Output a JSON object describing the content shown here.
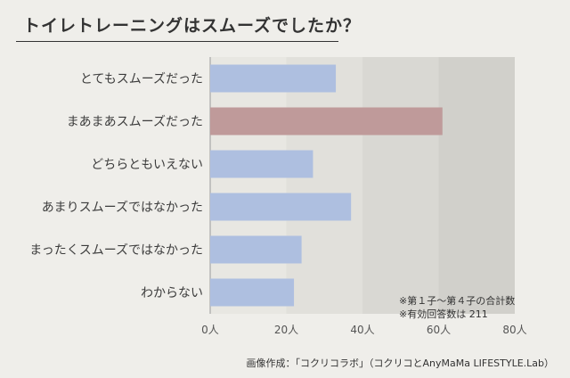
{
  "title": "トイレトレーニングはスムーズでしたか？",
  "notes": [
    "※第１子〜第４子の合計数",
    "※有効回答数は 211"
  ],
  "source": "画像作成：「コクリコラボ」（コクリコとAnyMaMa LIFESTYLE.Lab）",
  "colors": {
    "bar": "#aebfe0",
    "highlight": "#bf9a9a",
    "band1": "#e8e7e2",
    "band2": "#e1e0db",
    "band3": "#d9d8d3",
    "band4": "#d1d0cb"
  },
  "chart_data": {
    "type": "bar",
    "orientation": "horizontal",
    "categories": [
      "とてもスムーズだった",
      "まあまあスムーズだった",
      "どちらともいえない",
      "あまりスムーズではなかった",
      "まったくスムーズではなかった",
      "わからない"
    ],
    "values": [
      33,
      61,
      27,
      37,
      24,
      22
    ],
    "highlight_index": 1,
    "xlim": [
      0,
      80
    ],
    "ticks": [
      "0人",
      "20人",
      "40人",
      "60人",
      "80人"
    ],
    "tick_values": [
      0,
      20,
      40,
      60,
      80
    ],
    "xlabel": "",
    "ylabel": "",
    "grid": false
  }
}
